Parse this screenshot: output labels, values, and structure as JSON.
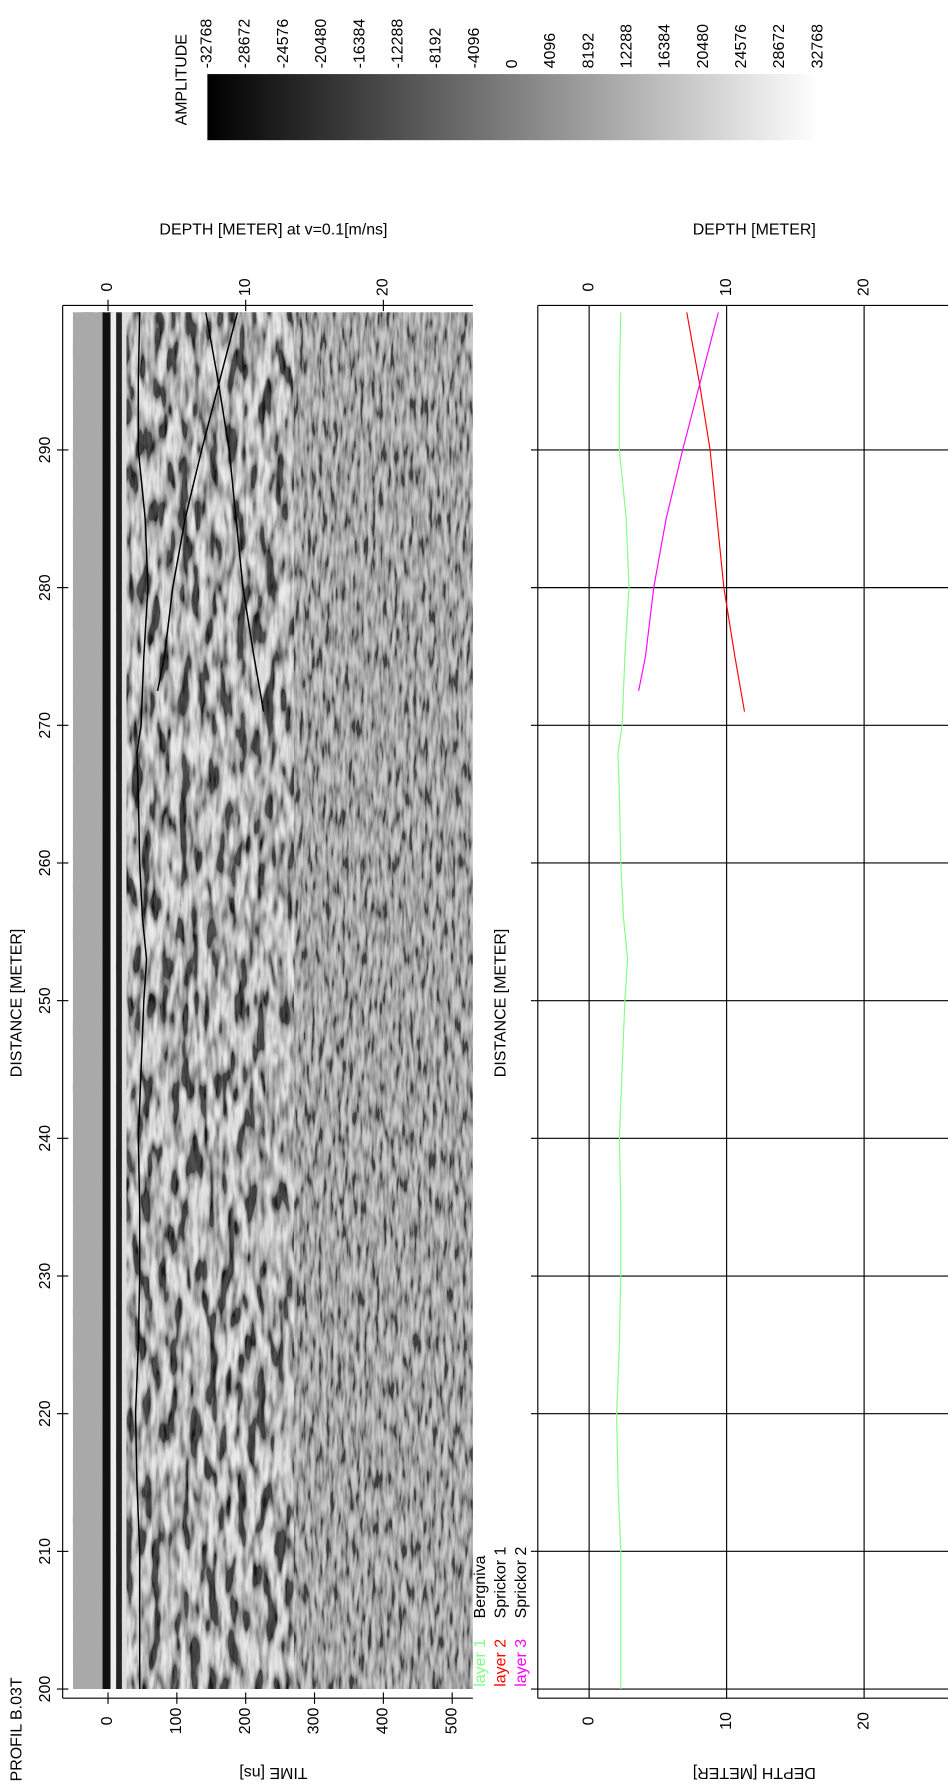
{
  "title": "PROFIL B.03T",
  "colorbar": {
    "label": "AMPLITUDE",
    "lim": [
      -32768,
      32768
    ],
    "ticks": [
      -32768,
      -28672,
      -24576,
      -20480,
      -16384,
      -12288,
      -8192,
      -4096,
      0,
      4096,
      8192,
      12288,
      16384,
      20480,
      24576,
      28672,
      32768
    ]
  },
  "chart_data": [
    {
      "type": "radargram",
      "xlabel": "DISTANCE [METER]",
      "ylabel": "TIME [ns]",
      "y2label": "DEPTH [METER] at v=0.1[m/ns]",
      "xlim": [
        200,
        300
      ],
      "xticks": [
        200,
        210,
        220,
        230,
        240,
        250,
        260,
        270,
        280,
        290
      ],
      "ylim": [
        -51,
        530
      ],
      "yticks": [
        0,
        100,
        200,
        300,
        400,
        500
      ],
      "y2lim": [
        -2.55,
        26.5
      ],
      "y2ticks": [
        0,
        10,
        20
      ],
      "picks_color": "#000000"
    },
    {
      "type": "line",
      "xlabel": "DISTANCE [METER]",
      "ylabel": "DEPTH [METER]",
      "xlim": [
        200,
        300
      ],
      "xticks": [
        200,
        210,
        220,
        230,
        240,
        250,
        260,
        270,
        280,
        290
      ],
      "ylim": [
        -3.07,
        26.1
      ],
      "yticks": [
        0,
        10,
        20
      ],
      "grid": true,
      "series": [
        {
          "layer": "layer 1",
          "name": "Bergniva",
          "color": "#80ff80",
          "x": [
            200,
            205,
            210,
            215,
            220,
            225,
            230,
            235,
            240,
            245,
            250,
            253,
            256,
            260,
            265,
            268,
            270,
            275,
            280,
            285,
            290,
            295,
            300
          ],
          "values": [
            2.3,
            2.3,
            2.3,
            2.1,
            2.0,
            2.2,
            2.3,
            2.3,
            2.2,
            2.4,
            2.6,
            2.8,
            2.5,
            2.3,
            2.2,
            2.1,
            2.4,
            2.6,
            2.9,
            2.7,
            2.2,
            2.2,
            2.3
          ]
        },
        {
          "layer": "layer 2",
          "name": "Sprickor 1",
          "color": "#ff0000",
          "x": [
            271,
            275,
            280,
            285,
            290,
            295,
            300
          ],
          "values": [
            11.3,
            10.6,
            9.8,
            9.3,
            8.8,
            8.0,
            7.1
          ]
        },
        {
          "layer": "layer 3",
          "name": "Sprickor 2",
          "color": "#ff00ff",
          "x": [
            272.5,
            275,
            280,
            285,
            290,
            295,
            300
          ],
          "values": [
            3.6,
            4.1,
            4.7,
            5.6,
            6.8,
            8.1,
            9.4
          ]
        }
      ]
    }
  ]
}
